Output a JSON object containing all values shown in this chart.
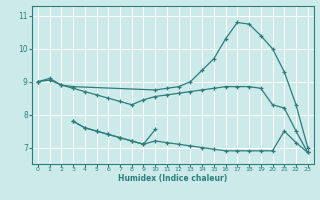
{
  "xlabel": "Humidex (Indice chaleur)",
  "bg_color": "#cceaea",
  "line_color": "#2e7d7d",
  "grid_color": "#ffffff",
  "xlim": [
    -0.5,
    23.5
  ],
  "ylim": [
    6.5,
    11.3
  ],
  "yticks": [
    7,
    8,
    9,
    10,
    11
  ],
  "xticks": [
    0,
    1,
    2,
    3,
    4,
    5,
    6,
    7,
    8,
    9,
    10,
    11,
    12,
    13,
    14,
    15,
    16,
    17,
    18,
    19,
    20,
    21,
    22,
    23
  ],
  "line1_x": [
    0,
    1,
    2,
    3,
    10,
    11,
    12,
    13,
    14,
    15,
    16,
    17,
    18,
    19,
    20,
    21,
    22,
    23
  ],
  "line1_y": [
    9.0,
    9.1,
    8.9,
    8.85,
    8.75,
    8.8,
    8.85,
    9.0,
    9.35,
    9.7,
    10.3,
    10.8,
    10.75,
    10.4,
    10.0,
    9.3,
    8.3,
    7.0
  ],
  "line2_x": [
    0,
    1,
    2,
    3,
    4,
    5,
    6,
    7,
    8,
    9,
    10,
    11,
    12,
    13,
    14,
    15,
    16,
    17,
    18,
    19,
    20,
    21,
    22,
    23
  ],
  "line2_y": [
    9.0,
    9.05,
    8.9,
    8.8,
    8.7,
    8.6,
    8.5,
    8.4,
    8.3,
    8.45,
    8.55,
    8.6,
    8.65,
    8.7,
    8.75,
    8.8,
    8.85,
    8.85,
    8.85,
    8.8,
    8.3,
    8.2,
    7.5,
    6.85
  ],
  "line3_x": [
    3,
    4,
    5,
    6,
    7,
    8,
    9,
    10,
    11,
    12,
    13,
    14,
    15,
    16,
    17,
    18,
    19,
    20,
    21,
    22,
    23
  ],
  "line3_y": [
    7.8,
    7.6,
    7.5,
    7.4,
    7.3,
    7.2,
    7.1,
    7.2,
    7.15,
    7.1,
    7.05,
    7.0,
    6.95,
    6.9,
    6.9,
    6.9,
    6.9,
    6.9,
    7.5,
    7.15,
    6.85
  ],
  "line4_x": [
    3,
    4,
    5,
    6,
    7,
    8,
    9,
    10
  ],
  "line4_y": [
    7.8,
    7.6,
    7.5,
    7.4,
    7.3,
    7.2,
    7.1,
    7.55
  ]
}
